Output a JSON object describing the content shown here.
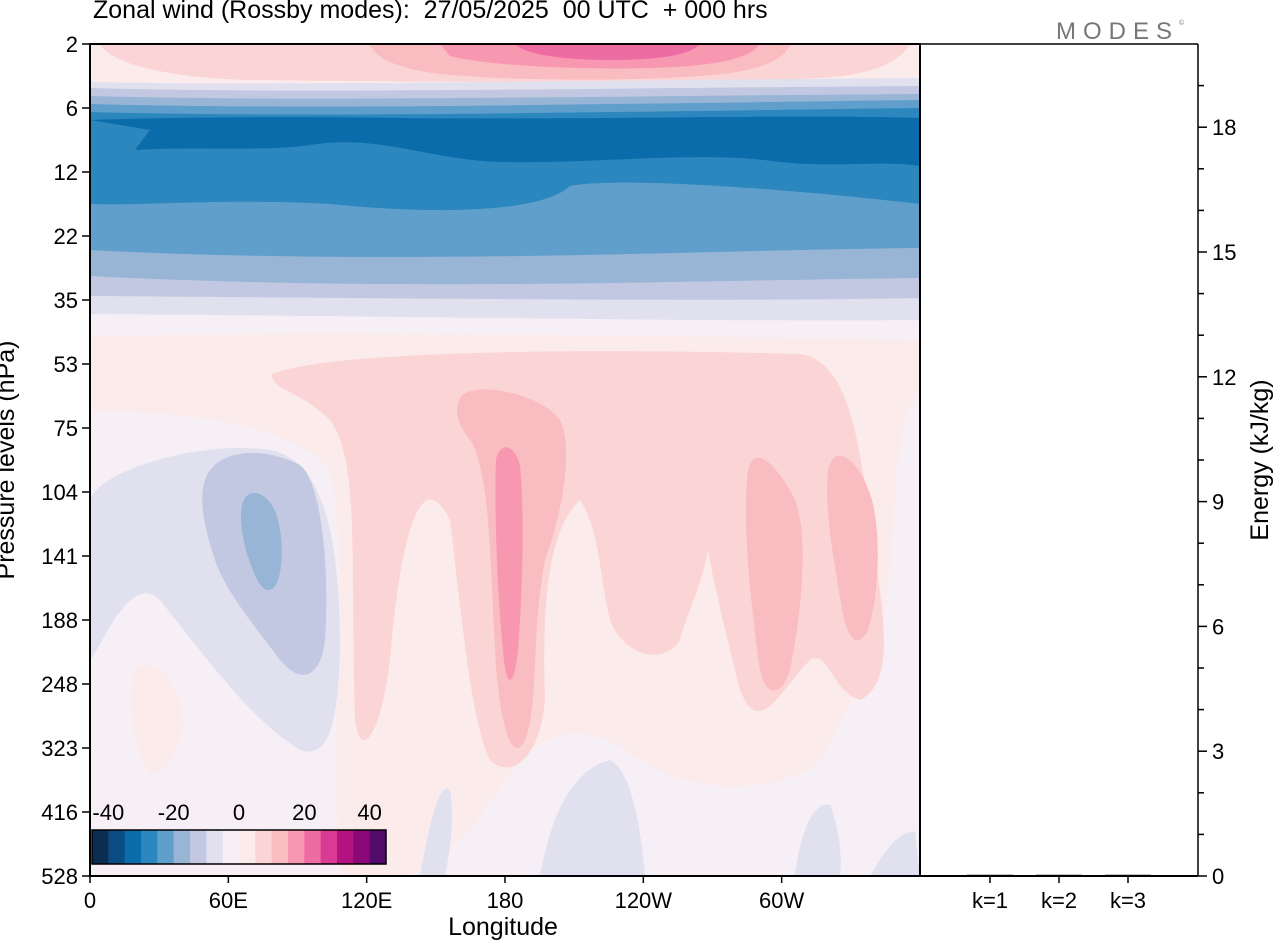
{
  "title": "Zonal wind (Rossby modes):  27/05/2025  00 UTC  + 000 hrs",
  "logo": "MODES",
  "logo_mark": "©",
  "chart_data": [
    {
      "type": "heatmap",
      "variable": "Zonal wind (Rossby modes)",
      "xlabel": "Longitude",
      "ylabel": "Pressure levels (hPa)",
      "x_ticks": [
        "0",
        "60E",
        "120E",
        "180",
        "120W",
        "60W"
      ],
      "y_ticks": [
        "2",
        "6",
        "12",
        "22",
        "35",
        "53",
        "75",
        "104",
        "141",
        "188",
        "248",
        "323",
        "416",
        "528"
      ],
      "colorbar": {
        "tick_labels": [
          "-40",
          "-20",
          "0",
          "20",
          "40"
        ],
        "range": [
          -45,
          45
        ],
        "step": 5,
        "colors": [
          "#0c2d52",
          "#0b4c82",
          "#0a6cab",
          "#2b87bd",
          "#609fcb",
          "#98b5d6",
          "#c2c8e2",
          "#e1e0ee",
          "#f7eff6",
          "#fcebeb",
          "#fbd5d5",
          "#f9bcc0",
          "#f797b0",
          "#ee6ca4",
          "#d93a93",
          "#b51281",
          "#8a0877",
          "#520b6b"
        ]
      },
      "notes": "Contour field of zonal wind; negative (blue) easterlies in upper levels 6-35 hPa, positive (pink) near 2 hPa and in tropospheric columns near 180 and 60W."
    },
    {
      "type": "bar",
      "ylabel": "Energy (kJ/kg)",
      "categories": [
        "k=1",
        "k=2",
        "k=3"
      ],
      "values": [
        0.03,
        0.03,
        0.03
      ],
      "ylim": [
        0,
        20
      ],
      "y_ticks": [
        "0",
        "3",
        "6",
        "9",
        "12",
        "15",
        "18"
      ]
    }
  ]
}
